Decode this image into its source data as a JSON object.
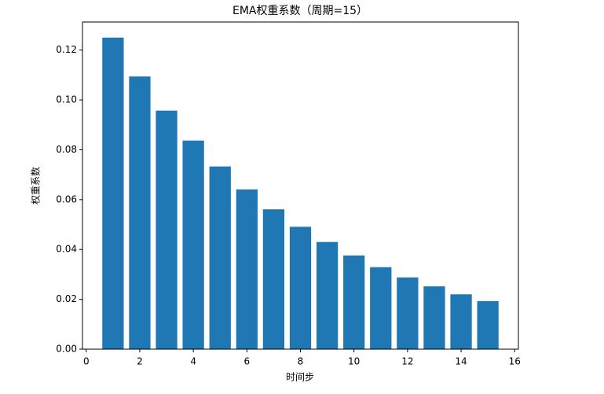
{
  "chart_data": {
    "type": "bar",
    "title": "EMA权重系数（周期=15）",
    "xlabel": "时间步",
    "ylabel": "权重系数",
    "x": [
      1,
      2,
      3,
      4,
      5,
      6,
      7,
      8,
      9,
      10,
      11,
      12,
      13,
      14,
      15
    ],
    "values": [
      0.125,
      0.1094,
      0.0957,
      0.0837,
      0.0733,
      0.0641,
      0.0561,
      0.0491,
      0.043,
      0.0376,
      0.0329,
      0.0288,
      0.0252,
      0.022,
      0.0193
    ],
    "color": "#1f77b4",
    "bar_width": 0.8,
    "xlim": [
      -0.14,
      16.14
    ],
    "xticks": [
      0,
      2,
      4,
      6,
      8,
      10,
      12,
      14,
      16
    ],
    "ylim": [
      0,
      0.13125
    ],
    "yticks": [
      {
        "value": 0,
        "label": "0.00"
      },
      {
        "value": 0.02,
        "label": "0.02"
      },
      {
        "value": 0.04,
        "label": "0.04"
      },
      {
        "value": 0.06,
        "label": "0.06"
      },
      {
        "value": 0.08,
        "label": "0.08"
      },
      {
        "value": 0.1,
        "label": "0.10"
      },
      {
        "value": 0.12,
        "label": "0.12"
      }
    ],
    "grid": false
  }
}
